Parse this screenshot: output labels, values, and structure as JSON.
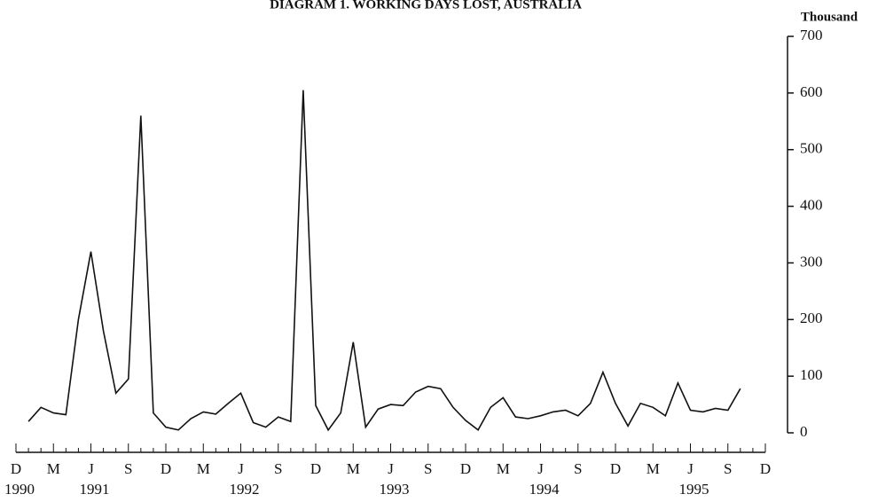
{
  "chart_data": {
    "type": "line",
    "title": "DIAGRAM 1. WORKING DAYS LOST, AUSTRALIA",
    "y_axis_label": "Thousand",
    "categories": [
      "D",
      null,
      null,
      "M",
      null,
      null,
      "J",
      null,
      null,
      "S",
      null,
      null,
      "D",
      null,
      null,
      "M",
      null,
      null,
      "J",
      null,
      null,
      "S",
      null,
      null,
      "D",
      null,
      null,
      "M",
      null,
      null,
      "J",
      null,
      null,
      "S",
      null,
      null,
      "D",
      null,
      null,
      "M",
      null,
      null,
      "J",
      null,
      null,
      "S",
      null,
      null,
      "D",
      null,
      null,
      "M",
      null,
      null,
      "J",
      null,
      null,
      "S",
      null,
      null,
      "D"
    ],
    "year_labels": [
      "1990",
      null,
      null,
      null,
      null,
      null,
      "1991",
      null,
      null,
      null,
      null,
      null,
      null,
      null,
      null,
      null,
      null,
      null,
      "1992",
      null,
      null,
      null,
      null,
      null,
      null,
      null,
      null,
      null,
      null,
      null,
      "1993",
      null,
      null,
      null,
      null,
      null,
      null,
      null,
      null,
      null,
      null,
      null,
      "1994",
      null,
      null,
      null,
      null,
      null,
      null,
      null,
      null,
      null,
      null,
      null,
      "1995",
      null,
      null,
      null,
      null,
      null,
      null
    ],
    "series": [
      {
        "name": "Working days lost",
        "color": "#111111",
        "values": [
          null,
          20,
          45,
          35,
          32,
          200,
          320,
          180,
          70,
          95,
          560,
          35,
          10,
          5,
          25,
          37,
          33,
          52,
          70,
          18,
          10,
          28,
          20,
          605,
          48,
          5,
          35,
          160,
          10,
          42,
          50,
          48,
          72,
          82,
          78,
          45,
          22,
          5,
          45,
          62,
          28,
          25,
          30,
          37,
          40,
          30,
          52,
          107,
          52,
          12,
          52,
          45,
          30,
          88,
          40,
          37,
          43,
          40,
          78,
          null,
          null
        ]
      }
    ],
    "ylim": [
      0,
      700
    ],
    "yticks": [
      0,
      100,
      200,
      300,
      400,
      500,
      600,
      700
    ]
  }
}
